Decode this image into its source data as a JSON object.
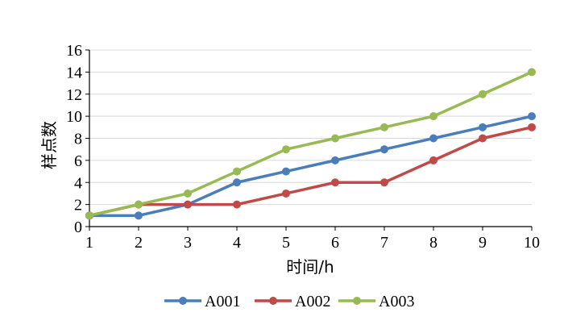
{
  "chart_data": {
    "type": "line",
    "xlabel": "时间/h",
    "ylabel": "样点数",
    "x": [
      1,
      2,
      3,
      4,
      5,
      6,
      7,
      8,
      9,
      10
    ],
    "xlim": [
      1,
      10
    ],
    "ylim": [
      0,
      16
    ],
    "yticks": [
      0,
      2,
      4,
      6,
      8,
      10,
      12,
      14,
      16
    ],
    "grid": "horizontal",
    "legend_position": "bottom",
    "series": [
      {
        "name": "A001",
        "color": "#4a7ebb",
        "values": [
          1,
          1,
          2,
          4,
          5,
          6,
          7,
          8,
          9,
          10
        ]
      },
      {
        "name": "A002",
        "color": "#be4b48",
        "values": [
          1,
          2,
          2,
          2,
          3,
          4,
          4,
          6,
          8,
          9
        ]
      },
      {
        "name": "A003",
        "color": "#98b954",
        "values": [
          1,
          2,
          3,
          5,
          7,
          8,
          9,
          10,
          12,
          14
        ]
      }
    ]
  }
}
